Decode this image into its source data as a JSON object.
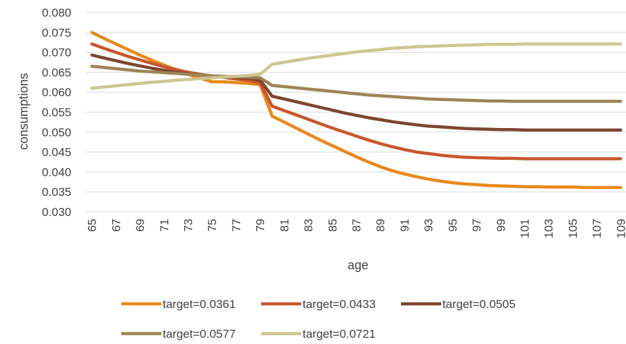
{
  "chart_data": {
    "type": "line",
    "title": "",
    "xlabel": "age",
    "ylabel": "consumptions",
    "ylim": [
      0.03,
      0.08
    ],
    "yticks": [
      "0.030",
      "0.035",
      "0.040",
      "0.045",
      "0.050",
      "0.055",
      "0.060",
      "0.065",
      "0.070",
      "0.075",
      "0.080"
    ],
    "x": [
      65,
      66,
      67,
      68,
      69,
      70,
      71,
      72,
      73,
      74,
      75,
      76,
      77,
      78,
      79,
      80,
      81,
      82,
      83,
      84,
      85,
      86,
      87,
      88,
      89,
      90,
      91,
      92,
      93,
      94,
      95,
      96,
      97,
      98,
      99,
      100,
      101,
      102,
      103,
      104,
      105,
      106,
      107,
      108,
      109
    ],
    "xtick_labels": [
      "65",
      "67",
      "69",
      "71",
      "73",
      "75",
      "77",
      "79",
      "81",
      "83",
      "85",
      "87",
      "89",
      "91",
      "93",
      "95",
      "97",
      "99",
      "101",
      "103",
      "105",
      "107",
      "109"
    ],
    "grid": true,
    "legend_position": "bottom",
    "series": [
      {
        "name": "target=0.0361",
        "color": "#E8891C",
        "values": [
          0.075,
          0.0735,
          0.0721,
          0.0707,
          0.0693,
          0.068,
          0.0668,
          0.0656,
          0.0645,
          0.0635,
          0.0626,
          0.0626,
          0.0624,
          0.0622,
          0.0619,
          0.054,
          0.0525,
          0.051,
          0.0495,
          0.048,
          0.0466,
          0.0452,
          0.0438,
          0.0425,
          0.0413,
          0.0403,
          0.0395,
          0.0388,
          0.0382,
          0.0377,
          0.0373,
          0.037,
          0.0368,
          0.0366,
          0.0365,
          0.0364,
          0.0363,
          0.0363,
          0.0362,
          0.0362,
          0.0362,
          0.0361,
          0.0361,
          0.0361,
          0.0361
        ]
      },
      {
        "name": "target=0.0433",
        "color": "#C8572C",
        "values": [
          0.0721,
          0.071,
          0.07,
          0.069,
          0.0681,
          0.0672,
          0.0664,
          0.0657,
          0.065,
          0.0645,
          0.0641,
          0.0637,
          0.0633,
          0.0629,
          0.0623,
          0.0565,
          0.0554,
          0.0543,
          0.0532,
          0.0521,
          0.051,
          0.05,
          0.049,
          0.048,
          0.0471,
          0.0463,
          0.0456,
          0.045,
          0.0446,
          0.0442,
          0.0439,
          0.0437,
          0.0436,
          0.0435,
          0.0434,
          0.0434,
          0.0433,
          0.0433,
          0.0433,
          0.0433,
          0.0433,
          0.0433,
          0.0433,
          0.0433,
          0.0433
        ]
      },
      {
        "name": "target=0.0505",
        "color": "#7D4532",
        "values": [
          0.0693,
          0.0686,
          0.0679,
          0.0672,
          0.0666,
          0.066,
          0.0655,
          0.065,
          0.0646,
          0.0643,
          0.0641,
          0.0639,
          0.0637,
          0.0635,
          0.063,
          0.059,
          0.0583,
          0.0576,
          0.0569,
          0.0562,
          0.0555,
          0.0548,
          0.0542,
          0.0536,
          0.0531,
          0.0526,
          0.0522,
          0.0518,
          0.0515,
          0.0513,
          0.0511,
          0.0509,
          0.0508,
          0.0507,
          0.0506,
          0.0506,
          0.0505,
          0.0505,
          0.0505,
          0.0505,
          0.0505,
          0.0505,
          0.0505,
          0.0505,
          0.0505
        ]
      },
      {
        "name": "target=0.0577",
        "color": "#9E8456",
        "values": [
          0.0665,
          0.0662,
          0.0659,
          0.0656,
          0.0653,
          0.0651,
          0.0649,
          0.0647,
          0.0645,
          0.0643,
          0.0641,
          0.064,
          0.0639,
          0.0638,
          0.0636,
          0.0617,
          0.0614,
          0.0611,
          0.0608,
          0.0605,
          0.0602,
          0.0599,
          0.0596,
          0.0593,
          0.0591,
          0.0589,
          0.0587,
          0.0585,
          0.0583,
          0.0582,
          0.0581,
          0.058,
          0.0579,
          0.0578,
          0.0578,
          0.0577,
          0.0577,
          0.0577,
          0.0577,
          0.0577,
          0.0577,
          0.0577,
          0.0577,
          0.0577,
          0.0577
        ]
      },
      {
        "name": "target=0.0721",
        "color": "#CFC592",
        "values": [
          0.061,
          0.0613,
          0.0616,
          0.0619,
          0.0622,
          0.0625,
          0.0627,
          0.063,
          0.0632,
          0.0634,
          0.0636,
          0.0638,
          0.064,
          0.0642,
          0.0645,
          0.067,
          0.0675,
          0.068,
          0.0685,
          0.0689,
          0.0693,
          0.0697,
          0.0701,
          0.0704,
          0.0707,
          0.071,
          0.0712,
          0.0714,
          0.0715,
          0.0716,
          0.0717,
          0.0718,
          0.0719,
          0.072,
          0.072,
          0.072,
          0.0721,
          0.0721,
          0.0721,
          0.0721,
          0.0721,
          0.0721,
          0.0721,
          0.0721,
          0.0721
        ]
      }
    ]
  }
}
